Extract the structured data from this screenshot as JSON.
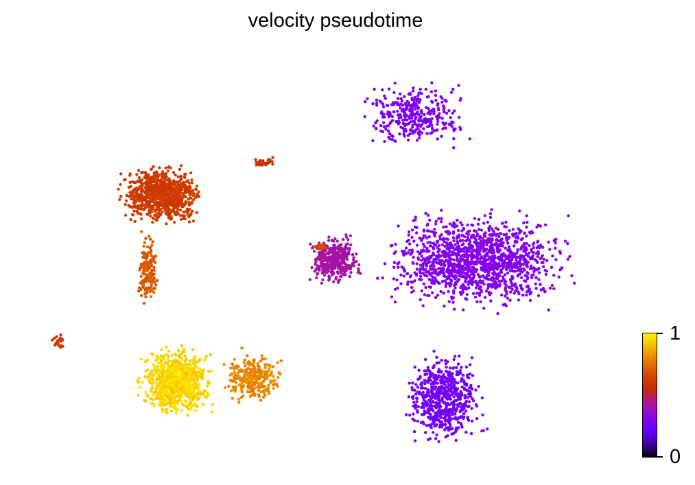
{
  "chart_data": {
    "type": "scatter",
    "title": "velocity pseudotime",
    "colorbar": {
      "min_label": "0",
      "max_label": "1",
      "range": [
        0,
        1
      ],
      "colormap": "gnuplot-like (black → purple → red → orange → yellow)"
    },
    "axes_visible": false,
    "grid": false,
    "clusters": [
      {
        "name": "",
        "x": [
          -7.5,
          -4.5
        ],
        "y": [
          3.0,
          5.2
        ],
        "pseudotime": 0.62,
        "points": 900
      },
      {
        "name": "",
        "x": [
          -6.8,
          -6.0
        ],
        "y": [
          0.2,
          3.0
        ],
        "pseudotime": 0.7,
        "points": 160
      },
      {
        "name": "",
        "x": [
          -6.8,
          -4.2
        ],
        "y": [
          -3.5,
          -0.8
        ],
        "pseudotime": 0.95,
        "points": 900
      },
      {
        "name": "",
        "x": [
          -4.2,
          -2.0
        ],
        "y": [
          -3.0,
          -1.0
        ],
        "pseudotime": 0.8,
        "points": 300
      },
      {
        "name": "",
        "x": [
          -1.5,
          0.5
        ],
        "y": [
          1.0,
          2.8
        ],
        "pseudotime": 0.42,
        "points": 400
      },
      {
        "name": "",
        "x": [
          0.5,
          7.5
        ],
        "y": [
          0.0,
          3.8
        ],
        "pseudotime": 0.3,
        "points": 1400
      },
      {
        "name": "",
        "x": [
          1.5,
          4.5
        ],
        "y": [
          -4.5,
          -1.0
        ],
        "pseudotime": 0.25,
        "points": 600
      },
      {
        "name": "",
        "x": [
          0.0,
          4.0
        ],
        "y": [
          5.5,
          8.0
        ],
        "pseudotime": 0.28,
        "points": 350
      },
      {
        "name": "",
        "x": [
          -3.2,
          -2.2
        ],
        "y": [
          5.0,
          5.4
        ],
        "pseudotime": 0.6,
        "points": 30
      },
      {
        "name": "",
        "x": [
          -9.5,
          -9.0
        ],
        "y": [
          -1.2,
          -0.5
        ],
        "pseudotime": 0.62,
        "points": 25
      },
      {
        "name": "",
        "x": [
          -1.2,
          -0.6
        ],
        "y": [
          2.2,
          2.5
        ],
        "pseudotime": 0.65,
        "points": 25
      }
    ],
    "xlim": [
      -10,
      9
    ],
    "ylim": [
      -5,
      9
    ]
  }
}
